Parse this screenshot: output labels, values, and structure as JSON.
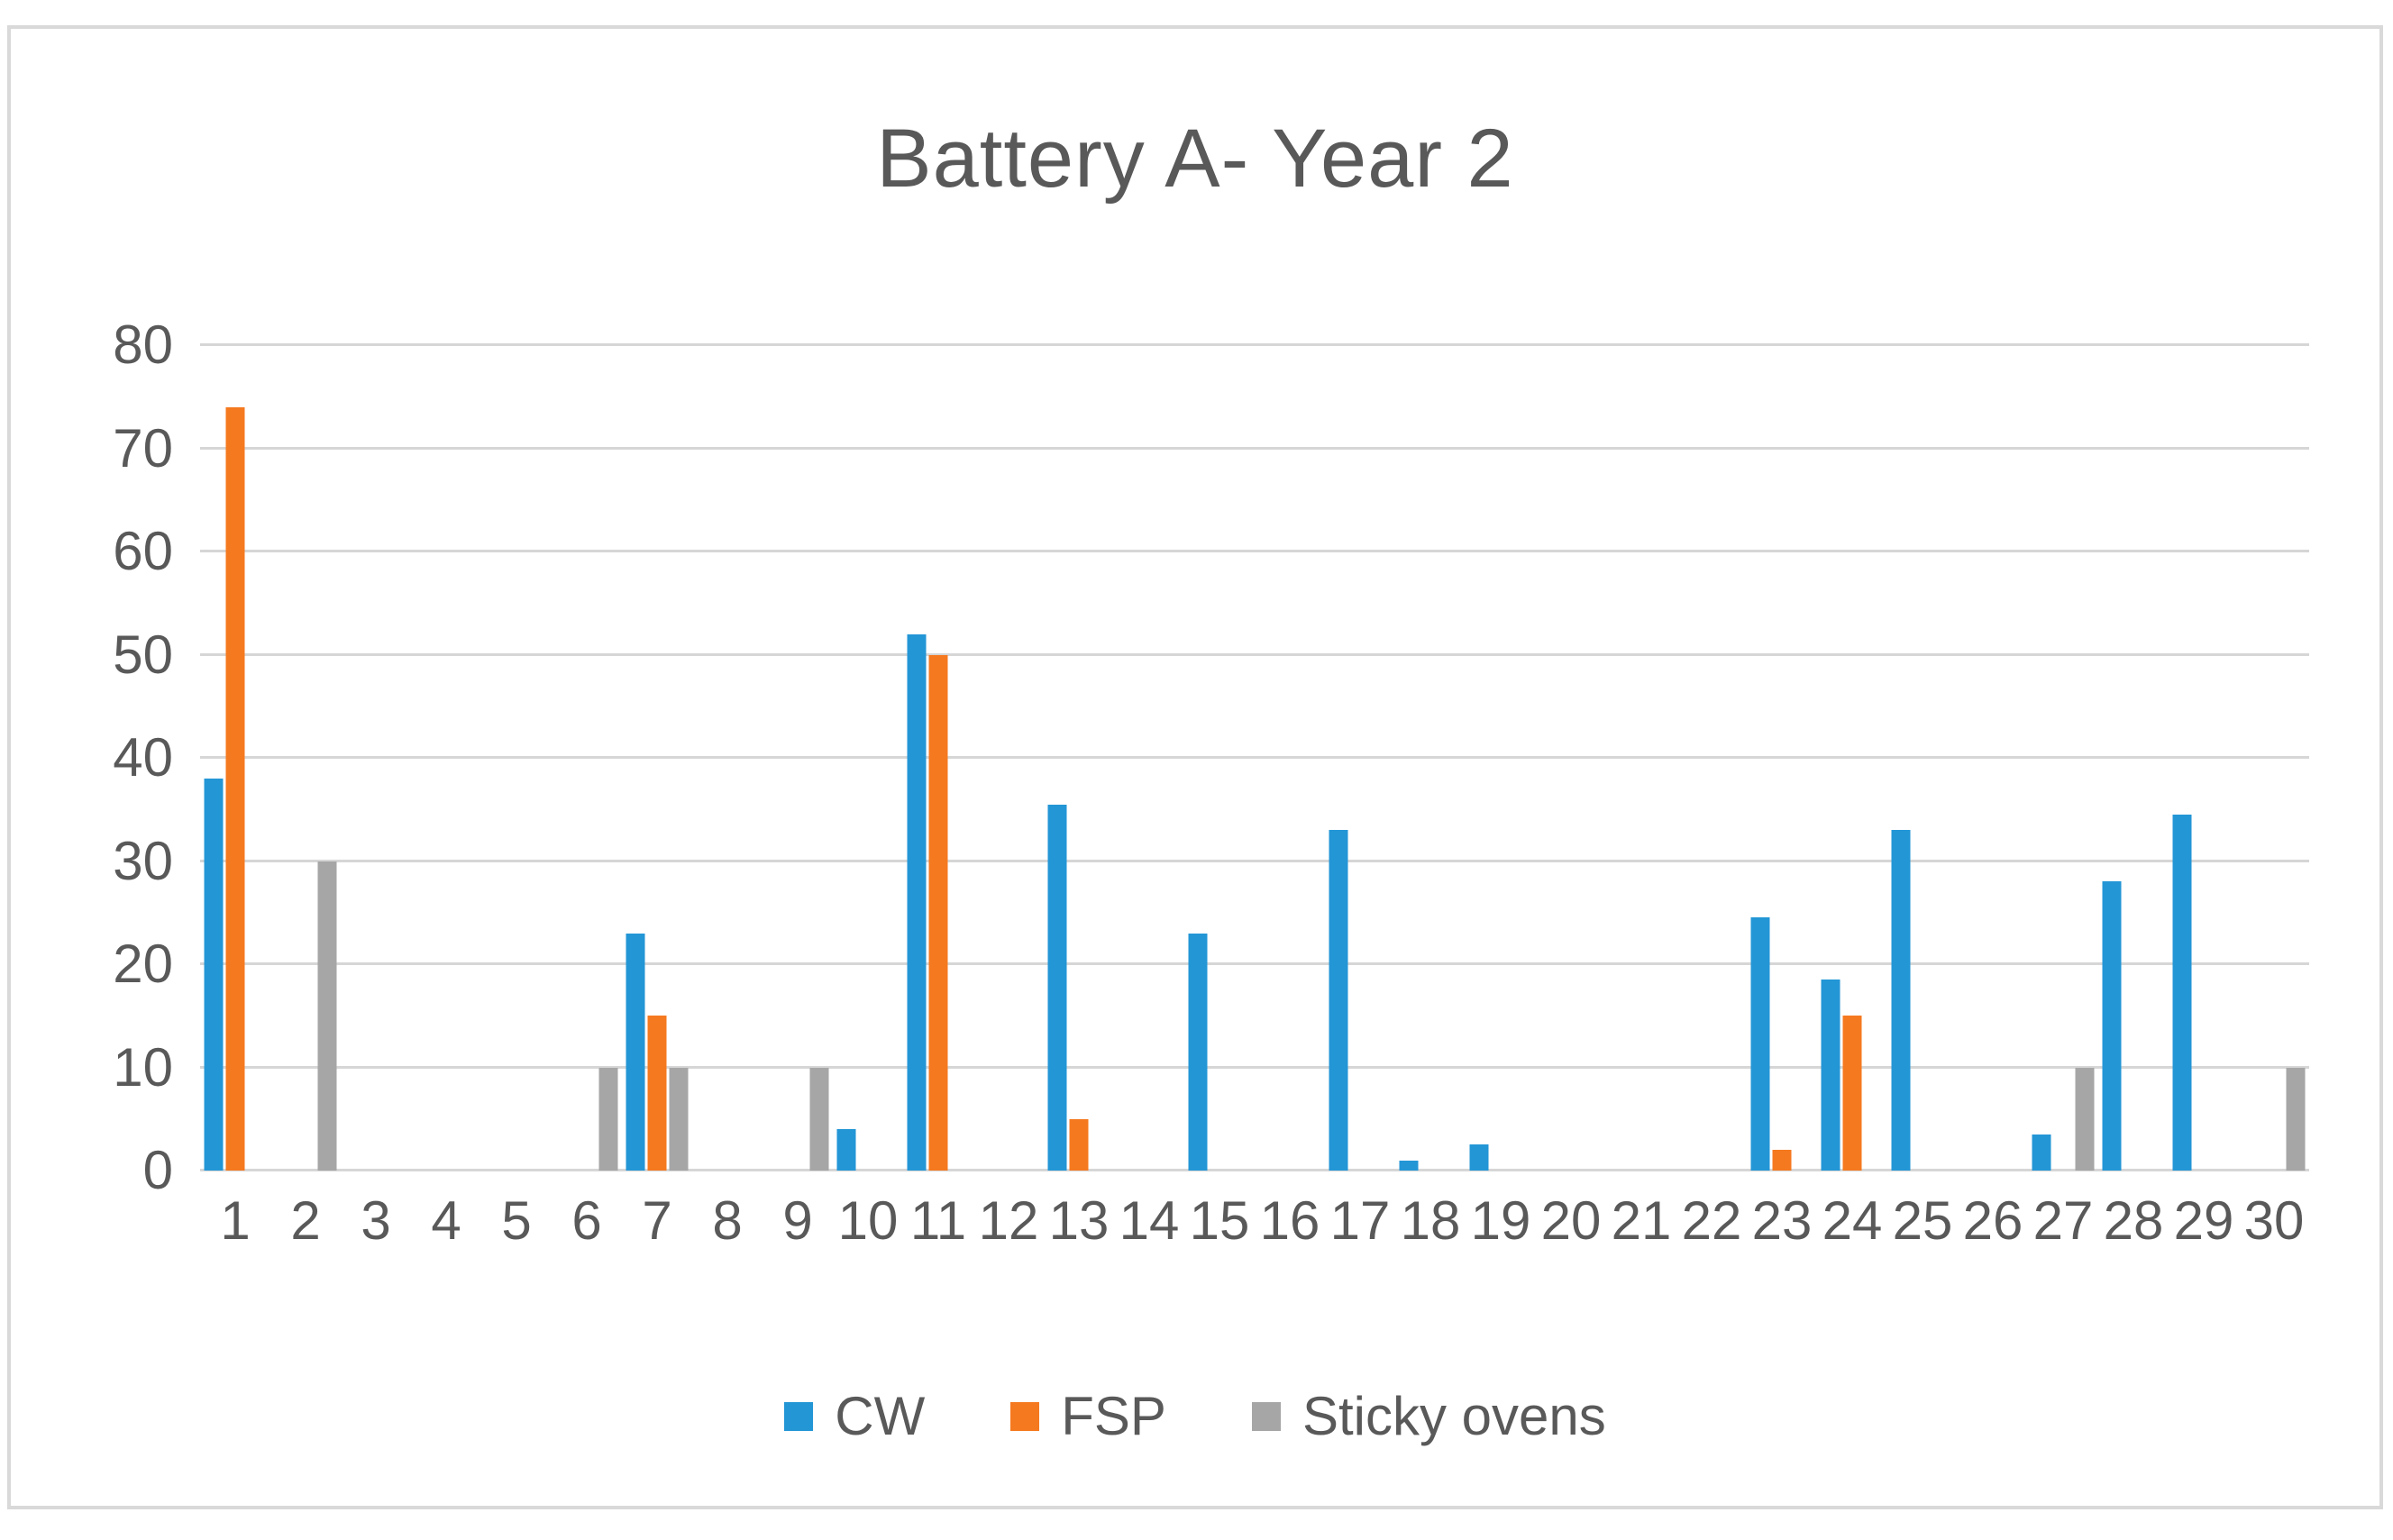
{
  "chart_data": {
    "type": "bar",
    "title": "Battery A- Year 2",
    "categories": [
      "1",
      "2",
      "3",
      "4",
      "5",
      "6",
      "7",
      "8",
      "9",
      "10",
      "11",
      "12",
      "13",
      "14",
      "15",
      "16",
      "17",
      "18",
      "19",
      "20",
      "21",
      "22",
      "23",
      "24",
      "25",
      "26",
      "27",
      "28",
      "29",
      "30"
    ],
    "series": [
      {
        "name": "CW",
        "color": "#2396D6",
        "values": [
          38,
          0,
          0,
          0,
          0,
          0,
          23,
          0,
          0,
          4,
          52,
          0,
          35.5,
          0,
          23,
          0,
          33,
          1,
          2.5,
          0,
          0,
          0,
          24.5,
          18.5,
          33,
          0,
          3.5,
          28,
          34.5,
          0
        ]
      },
      {
        "name": "FSP",
        "color": "#F5791F",
        "values": [
          74,
          0,
          0,
          0,
          0,
          0,
          15,
          0,
          0,
          0,
          50,
          0,
          5,
          0,
          0,
          0,
          0,
          0,
          0,
          0,
          0,
          0,
          2,
          15,
          0,
          0,
          0,
          0,
          0,
          0
        ]
      },
      {
        "name": "Sticky ovens",
        "color": "#A6A6A6",
        "values": [
          0,
          30,
          0,
          0,
          0,
          10,
          10,
          0,
          10,
          0,
          0,
          0,
          0,
          0,
          0,
          0,
          0,
          0,
          0,
          0,
          0,
          0,
          0,
          0,
          0,
          0,
          10,
          0,
          0,
          10
        ]
      }
    ],
    "xlabel": "",
    "ylabel": "",
    "ylim": [
      0,
      80
    ],
    "yticks": [
      0,
      10,
      20,
      30,
      40,
      50,
      60,
      70,
      80
    ],
    "grid": true,
    "legend_position": "bottom"
  },
  "theme": {
    "background": "#FFFFFF",
    "frame_border_color": "#D9D9D9",
    "gridline_color": "#D6D6D6",
    "text_color": "#595959"
  }
}
